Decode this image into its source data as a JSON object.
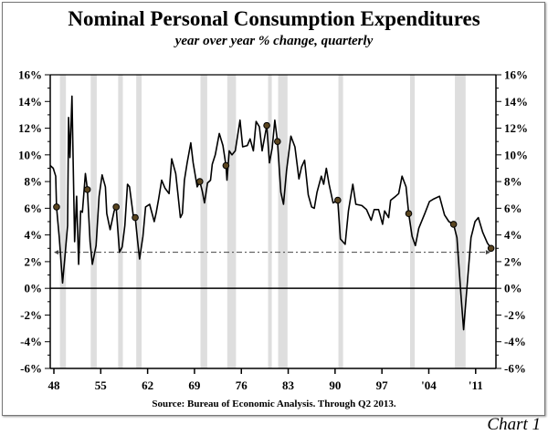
{
  "chart_data": {
    "type": "line",
    "title": "Nominal Personal Consumption Expenditures",
    "subtitle": "year over year % change, quarterly",
    "source": "Source:  Bureau of Economic Analysis. Through Q2 2013.",
    "chart_label": "Chart 1",
    "ylim": [
      -6,
      16
    ],
    "yticks": [
      "16%",
      "14%",
      "12%",
      "10%",
      "8%",
      "6%",
      "4%",
      "2%",
      "0%",
      "-2%",
      "-4%",
      "-6%"
    ],
    "ytick_values": [
      16,
      14,
      12,
      10,
      8,
      6,
      4,
      2,
      0,
      -2,
      -4,
      -6
    ],
    "xtick_labels": [
      "48",
      "55",
      "62",
      "69",
      "76",
      "83",
      "90",
      "97",
      "'04",
      "'11"
    ],
    "xtick_years": [
      1948,
      1955,
      1962,
      1969,
      1976,
      1983,
      1990,
      1997,
      2004,
      2011
    ],
    "xlim": [
      1947.5,
      2014
    ],
    "reference_line": {
      "value": 2.7,
      "style": "dash-dot arrow",
      "from": 1948,
      "to": 2013.2
    },
    "recessions": [
      [
        1948.9,
        1949.8
      ],
      [
        1953.5,
        1954.4
      ],
      [
        1957.6,
        1958.3
      ],
      [
        1960.3,
        1961.1
      ],
      [
        1969.9,
        1970.9
      ],
      [
        1973.9,
        1975.2
      ],
      [
        1980.0,
        1980.5
      ],
      [
        1981.5,
        1982.9
      ],
      [
        1990.5,
        1991.2
      ],
      [
        2001.2,
        2001.9
      ],
      [
        2007.9,
        2009.5
      ]
    ],
    "series": [
      {
        "points": [
          [
            1947.45,
            9.2
          ],
          [
            1947.9,
            9.0
          ],
          [
            1948.27,
            8.4
          ],
          [
            1948.4,
            6.1
          ],
          [
            1948.8,
            3.8
          ],
          [
            1949.3,
            0.4
          ],
          [
            1949.7,
            2.7
          ],
          [
            1950.05,
            4.7
          ],
          [
            1950.2,
            12.8
          ],
          [
            1950.4,
            9.8
          ],
          [
            1950.7,
            14.4
          ],
          [
            1951.1,
            3.5
          ],
          [
            1951.4,
            6.9
          ],
          [
            1951.7,
            1.8
          ],
          [
            1952.0,
            5.8
          ],
          [
            1952.25,
            5.7
          ],
          [
            1952.7,
            8.6
          ],
          [
            1953.0,
            7.4
          ],
          [
            1953.4,
            3.5
          ],
          [
            1953.75,
            1.8
          ],
          [
            1954.3,
            3.2
          ],
          [
            1954.75,
            6.9
          ],
          [
            1955.2,
            8.5
          ],
          [
            1955.7,
            7.6
          ],
          [
            1955.9,
            5.6
          ],
          [
            1956.4,
            4.4
          ],
          [
            1957.0,
            5.8
          ],
          [
            1957.3,
            6.1
          ],
          [
            1957.8,
            2.7
          ],
          [
            1958.2,
            3.1
          ],
          [
            1958.6,
            4.7
          ],
          [
            1959.0,
            7.8
          ],
          [
            1959.3,
            7.6
          ],
          [
            1959.9,
            5.3
          ],
          [
            1960.15,
            5.3
          ],
          [
            1960.5,
            3.6
          ],
          [
            1960.8,
            2.2
          ],
          [
            1961.3,
            3.9
          ],
          [
            1961.7,
            6.1
          ],
          [
            1962.3,
            6.3
          ],
          [
            1963.0,
            5.0
          ],
          [
            1963.3,
            5.7
          ],
          [
            1963.65,
            6.7
          ],
          [
            1964.1,
            8.1
          ],
          [
            1964.6,
            7.5
          ],
          [
            1965.2,
            7.1
          ],
          [
            1965.6,
            9.7
          ],
          [
            1966.2,
            8.6
          ],
          [
            1966.5,
            7.2
          ],
          [
            1966.9,
            5.3
          ],
          [
            1967.2,
            5.6
          ],
          [
            1967.5,
            8.1
          ],
          [
            1967.9,
            9.4
          ],
          [
            1968.45,
            10.9
          ],
          [
            1968.8,
            9.4
          ],
          [
            1969.4,
            7.6
          ],
          [
            1969.8,
            8.0
          ],
          [
            1970.15,
            7.3
          ],
          [
            1970.5,
            6.4
          ],
          [
            1970.95,
            7.9
          ],
          [
            1971.4,
            8.1
          ],
          [
            1971.65,
            9.3
          ],
          [
            1972.1,
            10.0
          ],
          [
            1972.7,
            11.6
          ],
          [
            1973.25,
            10.7
          ],
          [
            1973.7,
            9.2
          ],
          [
            1973.85,
            8.1
          ],
          [
            1974.2,
            10.3
          ],
          [
            1974.6,
            10.0
          ],
          [
            1975.1,
            10.3
          ],
          [
            1975.8,
            12.6
          ],
          [
            1976.2,
            10.6
          ],
          [
            1976.9,
            10.7
          ],
          [
            1977.3,
            11.2
          ],
          [
            1977.8,
            10.3
          ],
          [
            1978.2,
            12.5
          ],
          [
            1978.7,
            12.1
          ],
          [
            1979.1,
            10.3
          ],
          [
            1979.8,
            12.2
          ],
          [
            1980.2,
            9.4
          ],
          [
            1980.6,
            10.5
          ],
          [
            1981.0,
            12.6
          ],
          [
            1981.4,
            11.0
          ],
          [
            1981.9,
            7.2
          ],
          [
            1982.3,
            6.3
          ],
          [
            1982.75,
            8.8
          ],
          [
            1983.4,
            11.4
          ],
          [
            1984.0,
            10.6
          ],
          [
            1984.6,
            8.2
          ],
          [
            1985.0,
            9.1
          ],
          [
            1985.45,
            9.6
          ],
          [
            1986.0,
            7.0
          ],
          [
            1986.5,
            6.1
          ],
          [
            1986.9,
            6.0
          ],
          [
            1987.3,
            7.2
          ],
          [
            1987.95,
            8.4
          ],
          [
            1988.3,
            7.8
          ],
          [
            1988.7,
            9.0
          ],
          [
            1989.1,
            7.8
          ],
          [
            1989.7,
            6.4
          ],
          [
            1990.4,
            6.6
          ],
          [
            1990.8,
            3.7
          ],
          [
            1991.5,
            3.3
          ],
          [
            1992.0,
            5.8
          ],
          [
            1992.65,
            7.8
          ],
          [
            1993.1,
            6.3
          ],
          [
            1994.0,
            6.2
          ],
          [
            1994.7,
            5.9
          ],
          [
            1995.4,
            5.1
          ],
          [
            1995.85,
            5.9
          ],
          [
            1996.5,
            5.9
          ],
          [
            1997.1,
            4.8
          ],
          [
            1997.4,
            5.8
          ],
          [
            1998.0,
            5.3
          ],
          [
            1998.3,
            6.6
          ],
          [
            1999.05,
            6.9
          ],
          [
            1999.5,
            7.1
          ],
          [
            2000.0,
            8.4
          ],
          [
            2000.6,
            7.6
          ],
          [
            2001.0,
            5.6
          ],
          [
            2001.5,
            3.9
          ],
          [
            2002.0,
            3.2
          ],
          [
            2002.5,
            4.5
          ],
          [
            2003.4,
            5.6
          ],
          [
            2004.1,
            6.5
          ],
          [
            2004.75,
            6.7
          ],
          [
            2005.6,
            6.9
          ],
          [
            2006.35,
            5.5
          ],
          [
            2007.0,
            5.0
          ],
          [
            2007.7,
            4.8
          ],
          [
            2008.2,
            3.8
          ],
          [
            2008.8,
            -0.5
          ],
          [
            2009.2,
            -3.1
          ],
          [
            2009.8,
            0.7
          ],
          [
            2010.3,
            3.8
          ],
          [
            2010.9,
            5.0
          ],
          [
            2011.4,
            5.3
          ],
          [
            2012.05,
            4.2
          ],
          [
            2012.75,
            3.4
          ],
          [
            2013.3,
            3.0
          ]
        ]
      }
    ],
    "markers": [
      [
        1948.4,
        6.1
      ],
      [
        1953.0,
        7.4
      ],
      [
        1957.3,
        6.1
      ],
      [
        1960.15,
        5.3
      ],
      [
        1969.8,
        8.0
      ],
      [
        1973.7,
        9.2
      ],
      [
        1979.8,
        12.2
      ],
      [
        1981.4,
        11.0
      ],
      [
        1990.4,
        6.6
      ],
      [
        2001.0,
        5.6
      ],
      [
        2007.7,
        4.8
      ],
      [
        2013.3,
        3.0
      ]
    ],
    "colors": {
      "line": "#000000",
      "recession": "#dedede",
      "marker": "#5a4520"
    },
    "grid": false
  }
}
